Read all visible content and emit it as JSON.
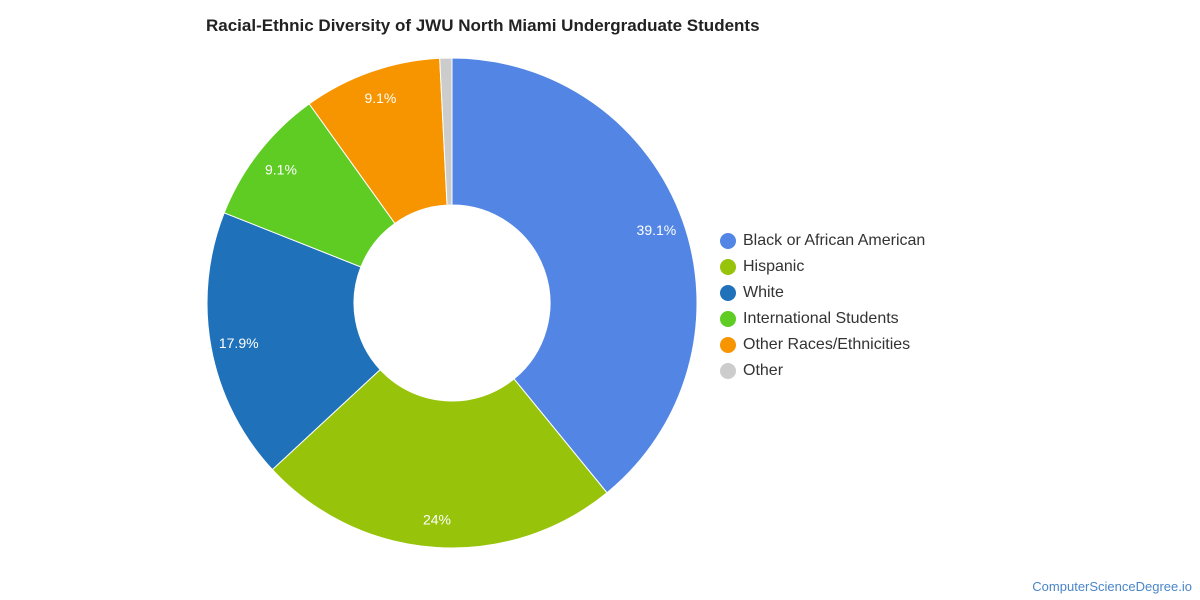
{
  "title": "Racial-Ethnic Diversity of JWU North Miami Undergraduate Students",
  "credit": "ComputerScienceDegree.io",
  "chart_data": {
    "type": "pie",
    "style": "donut",
    "title": "Racial-Ethnic Diversity of JWU North Miami Undergraduate Students",
    "legend_position": "right",
    "series": [
      {
        "name": "Black or African American",
        "value": 39.1,
        "label": "39.1%",
        "color": "#5386e4"
      },
      {
        "name": "Hispanic",
        "value": 24.0,
        "label": "24%",
        "color": "#97c30a"
      },
      {
        "name": "White",
        "value": 17.9,
        "label": "17.9%",
        "color": "#1f72ba"
      },
      {
        "name": "International Students",
        "value": 9.1,
        "label": "9.1%",
        "color": "#5fcc24"
      },
      {
        "name": "Other Races/Ethnicities",
        "value": 9.1,
        "label": "9.1%",
        "color": "#f79500"
      },
      {
        "name": "Other",
        "value": 0.8,
        "label": "",
        "color": "#cccccc"
      }
    ]
  }
}
